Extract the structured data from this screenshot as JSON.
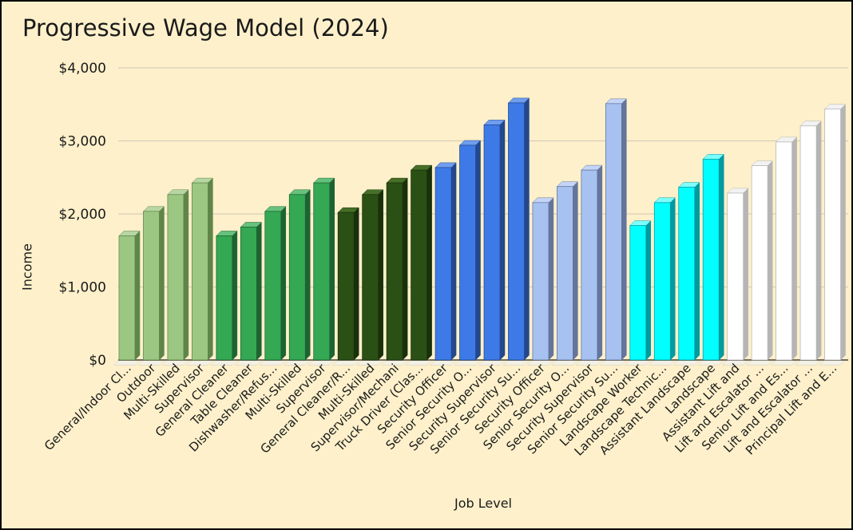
{
  "title": "Progressive Wage Model (2024)",
  "chart_data": {
    "type": "bar",
    "title": "Progressive Wage Model (2024)",
    "xlabel": "Job Level",
    "ylabel": "Income",
    "ylim": [
      0,
      4000
    ],
    "yticks": [
      {
        "label": "$0",
        "value": 0
      },
      {
        "label": "$1,000",
        "value": 1000
      },
      {
        "label": "$2,000",
        "value": 2000
      },
      {
        "label": "$3,000",
        "value": 3000
      },
      {
        "label": "$4,000",
        "value": 4000
      }
    ],
    "grid": true,
    "legend": "none",
    "categories": [
      "General/Indoor Cl...",
      "Outdoor",
      "Multi-Skilled",
      "Supervisor",
      "General Cleaner",
      "Table Cleaner",
      "Dishwasher/Refus...",
      "Multi-Skilled",
      "Supervisor",
      "General Cleaner/R...",
      "Multi-Skilled",
      "Supervisor/Mechani",
      "Truck Driver (Clas...",
      "Security Officer",
      "Senior Security O...",
      "Security Supervisor",
      "Senior Security Su...",
      "Security Officer",
      "Senior Security O...",
      "Security Supervisor",
      "Senior Security Su...",
      "Landscape Worker",
      "Landscape Technic...",
      "Assistant Landscape",
      "Landscape",
      "Assistant Lift and",
      "Lift and Escalator ...",
      "Senior Lift and Es...",
      "Lift and Escalator ...",
      "Principal Lift and E..."
    ],
    "values": [
      1700,
      2035,
      2265,
      2425,
      1700,
      1820,
      2035,
      2265,
      2425,
      2020,
      2265,
      2425,
      2600,
      2635,
      2940,
      3220,
      3520,
      2155,
      2375,
      2600,
      3510,
      1840,
      2155,
      2365,
      2750,
      2285,
      2660,
      2985,
      3205,
      3435
    ],
    "groups": [
      {
        "name": "light-green",
        "count": 4,
        "front": "#9cc783",
        "side": "#5f8549",
        "top": "#b7d6a4"
      },
      {
        "name": "green",
        "count": 5,
        "front": "#34a853",
        "side": "#1e6331",
        "top": "#66c17e"
      },
      {
        "name": "dark-green",
        "count": 4,
        "front": "#2b5016",
        "side": "#18300b",
        "top": "#466f27"
      },
      {
        "name": "blue",
        "count": 4,
        "front": "#3d7ae8",
        "side": "#25488c",
        "top": "#6f9df0"
      },
      {
        "name": "light-blue",
        "count": 4,
        "front": "#a7c2f0",
        "side": "#64749b",
        "top": "#c4d5f7"
      },
      {
        "name": "cyan",
        "count": 4,
        "front": "#00ffff",
        "side": "#009a9f",
        "top": "#7dffff"
      },
      {
        "name": "white",
        "count": 5,
        "front": "#ffffff",
        "side": "#b5b5b5",
        "top": "#f2f2f2"
      }
    ],
    "style": {
      "background": "#fdf0ca",
      "grid_color": "#cfc9b6",
      "axis_color": "#716c5e",
      "text_color": "#1a1a1a",
      "floor_color": "#f3f0e5"
    }
  }
}
